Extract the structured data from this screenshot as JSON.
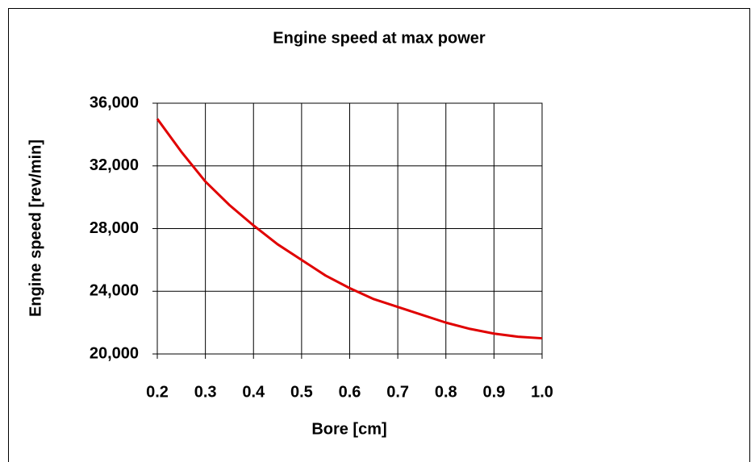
{
  "chart_data": {
    "type": "line",
    "title": "Engine speed at max power",
    "x_label": "Bore [cm]",
    "y_label": "Engine speed [rev/min]",
    "x": [
      0.2,
      0.25,
      0.3,
      0.35,
      0.4,
      0.45,
      0.5,
      0.55,
      0.6,
      0.65,
      0.7,
      0.75,
      0.8,
      0.85,
      0.9,
      0.95,
      1.0
    ],
    "series": [
      {
        "name": "Engine speed",
        "color": "#e00000",
        "values": [
          35000,
          32900,
          31000,
          29500,
          28200,
          27000,
          26000,
          25000,
          24200,
          23500,
          23000,
          22500,
          22000,
          21600,
          21300,
          21100,
          21000
        ]
      }
    ],
    "xlim": [
      0.2,
      1.0
    ],
    "xticks": [
      0.2,
      0.3,
      0.4,
      0.5,
      0.6,
      0.7,
      0.8,
      0.9,
      {
        "value": 1,
        "label": "1.0"
      }
    ],
    "ylim": [
      20000,
      36000
    ],
    "yticks": [
      {
        "value": 20000,
        "label": "20,000"
      },
      {
        "value": 24000,
        "label": "24,000"
      },
      {
        "value": 28000,
        "label": "28,000"
      },
      {
        "value": 32000,
        "label": "32,000"
      },
      {
        "value": 36000,
        "label": "36,000"
      }
    ],
    "grid": true
  }
}
